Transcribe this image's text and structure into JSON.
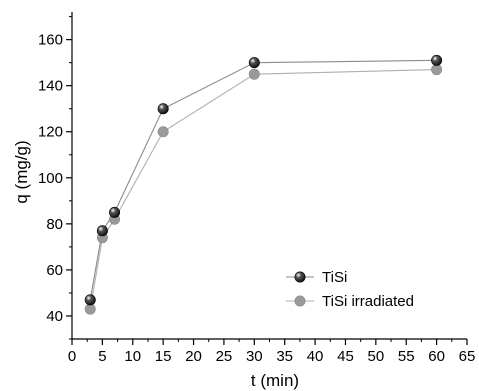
{
  "chart_data": {
    "type": "line",
    "xlabel": "t (min)",
    "ylabel": "q (mg/g)",
    "xlim": [
      0,
      65
    ],
    "ylim": [
      30,
      172
    ],
    "xticks": [
      0,
      5,
      10,
      15,
      20,
      25,
      30,
      35,
      40,
      45,
      50,
      55,
      60,
      65
    ],
    "yticks": [
      40,
      60,
      80,
      100,
      120,
      140,
      160
    ],
    "grid": false,
    "legend_position": "bottom-right",
    "series": [
      {
        "name": "TiSi",
        "x": [
          3,
          5,
          7,
          15,
          30,
          60
        ],
        "y": [
          47,
          77,
          85,
          130,
          150,
          151
        ],
        "color": "#111111",
        "line_color": "#8c8c8c"
      },
      {
        "name": "TiSi irradiated",
        "x": [
          3,
          5,
          7,
          15,
          30,
          60
        ],
        "y": [
          43,
          74,
          82,
          120,
          145,
          147
        ],
        "color": "#9a9a9a",
        "line_color": "#b0b0b0"
      }
    ]
  }
}
